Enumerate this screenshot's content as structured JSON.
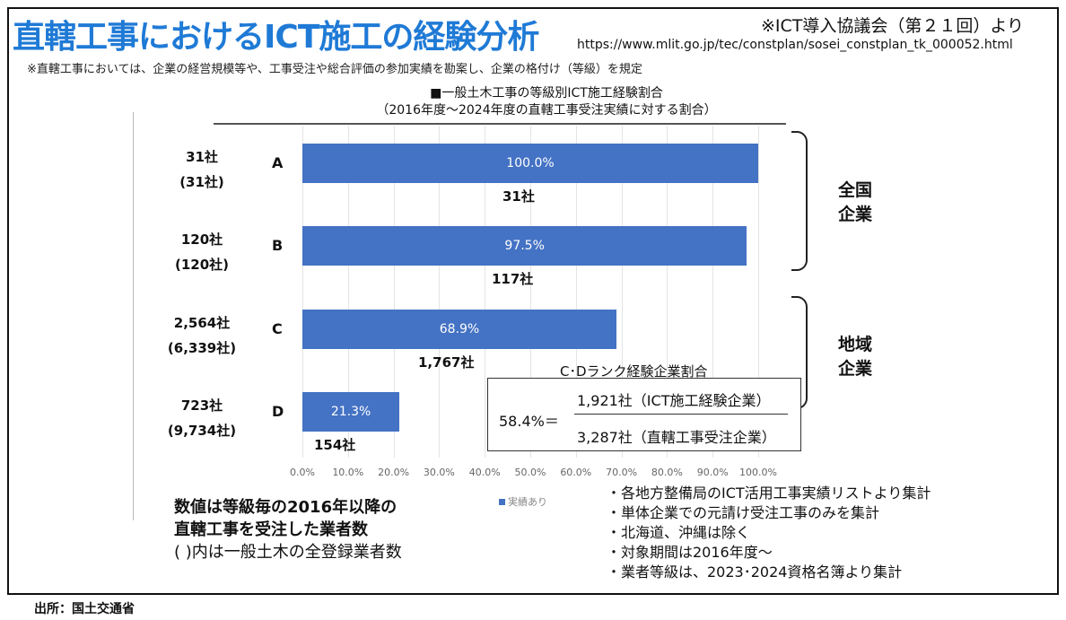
{
  "header": {
    "title": "直轄工事におけるICT施工の経験分析",
    "source_note": "※ICT導入協議会（第２１回）より",
    "source_url": "https://www.mlit.go.jp/tec/constplan/sosei_constplan_tk_000052.html",
    "note": "※直轄工事においては、企業の経営規模等や、工事受注や総合評価の参加実績を勘案し、企業の格付け（等級）を規定"
  },
  "chart_data": {
    "type": "bar",
    "orientation": "horizontal",
    "title": "■一般土木工事の等級別ICT施工経験割合",
    "subtitle": "（2016年度～2024年度の直轄工事受注実績に対する割合）",
    "categories": [
      "A",
      "B",
      "C",
      "D"
    ],
    "series": [
      {
        "name": "実績あり",
        "values": [
          100.0,
          97.5,
          68.9,
          21.3
        ],
        "labels": [
          "100.0%",
          "97.5%",
          "68.9%",
          "21.3%"
        ],
        "color": "#4472c4"
      }
    ],
    "experienced_counts": [
      "31社",
      "117社",
      "1,767社",
      "154社"
    ],
    "ordered_counts": [
      "31社",
      "120社",
      "2,564社",
      "723社"
    ],
    "registered_counts": [
      "(31社)",
      "(120社)",
      "(6,339社)",
      "(9,734社)"
    ],
    "xlim": [
      0,
      100
    ],
    "xticks": [
      "0.0%",
      "10.0%",
      "20.0%",
      "30.0%",
      "40.0%",
      "50.0%",
      "60.0%",
      "70.0%",
      "80.0%",
      "90.0%",
      "100.0%"
    ],
    "legend": "実績あり",
    "legend_position": "bottom"
  },
  "groups": [
    {
      "label1": "全国",
      "label2": "企業"
    },
    {
      "label1": "地域",
      "label2": "企業"
    }
  ],
  "ratio": {
    "title": "C･Dランク経験企業割合",
    "percent": "58.4%＝",
    "numerator": "1,921社（ICT施工経験企業）",
    "denominator": "3,287社（直轄工事受注企業）"
  },
  "left_note": [
    "数値は等級毎の2016年以降の",
    "直轄工事を受注した業者数",
    "( )内は一般土木の全登録業者数"
  ],
  "bullets": [
    "・各地方整備局のICT活用工事実績リストより集計",
    "・単体企業での元請け受注工事のみを集計",
    "・北海道、沖縄は除く",
    "・対象期間は2016年度～",
    "・業者等級は、2023･2024資格名簿より集計"
  ],
  "footer": "出所：国土交通省"
}
